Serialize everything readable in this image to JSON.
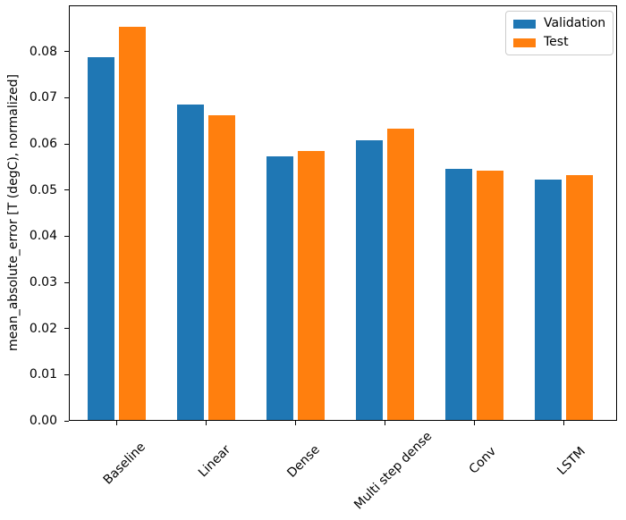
{
  "chart_data": {
    "type": "bar",
    "categories": [
      "Baseline",
      "Linear",
      "Dense",
      "Multi step dense",
      "Conv",
      "LSTM"
    ],
    "series": [
      {
        "name": "Validation",
        "color": "#1f77b4",
        "values": [
          0.0785,
          0.0684,
          0.0571,
          0.0605,
          0.0543,
          0.0521
        ]
      },
      {
        "name": "Test",
        "color": "#ff7f0e",
        "values": [
          0.0852,
          0.0661,
          0.0582,
          0.0632,
          0.0541,
          0.0531
        ]
      }
    ],
    "title": "",
    "xlabel": "",
    "ylabel": "mean_absolute_error [T (degC), normalized]",
    "ylim": [
      0,
      0.09
    ],
    "ytick_labels": [
      "0.00",
      "0.01",
      "0.02",
      "0.03",
      "0.04",
      "0.05",
      "0.06",
      "0.07",
      "0.08"
    ],
    "xtick_rotation_deg": 45,
    "grid": false,
    "legend": {
      "position": "upper right",
      "entries": [
        "Validation",
        "Test"
      ]
    }
  },
  "colors": {
    "background": "#ffffff",
    "spine": "#000000",
    "legend_border": "#cccccc",
    "validation": "#1f77b4",
    "test": "#ff7f0e"
  }
}
